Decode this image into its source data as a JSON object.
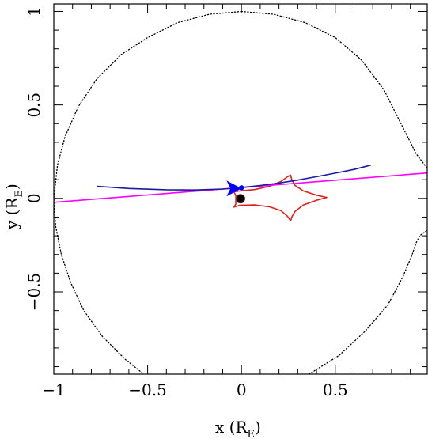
{
  "chart_data": {
    "type": "line",
    "title": "",
    "xlabel": {
      "main": "x (R",
      "sub": "E",
      "close": ")"
    },
    "ylabel": {
      "main": "y (R",
      "sub": "E",
      "close": ")"
    },
    "xlim": [
      -1.0,
      0.99
    ],
    "ylim": [
      -0.94,
      1.04
    ],
    "x_ticks": [
      {
        "value": -1,
        "label": "−1"
      },
      {
        "value": -0.5,
        "label": "−0.5"
      },
      {
        "value": 0,
        "label": "0"
      },
      {
        "value": 0.5,
        "label": "0.5"
      }
    ],
    "y_ticks": [
      {
        "value": -0.5,
        "label": "−0.5"
      },
      {
        "value": 0,
        "label": "0"
      },
      {
        "value": 0.5,
        "label": "0.5"
      },
      {
        "value": 1,
        "label": "1"
      }
    ],
    "grid": false,
    "series": [
      {
        "kind": "critical-curve",
        "style": "dotted",
        "color": "#000000",
        "points": [
          [
            0.0,
            1.0
          ],
          [
            0.17,
            0.985
          ],
          [
            0.34,
            0.94
          ],
          [
            0.5,
            0.86
          ],
          [
            0.64,
            0.74
          ],
          [
            0.76,
            0.58
          ],
          [
            0.85,
            0.4
          ],
          [
            0.9,
            0.3
          ],
          [
            0.93,
            0.24
          ],
          [
            0.96,
            0.2
          ],
          [
            0.99,
            0.16
          ]
        ]
      },
      {
        "kind": "critical-curve",
        "style": "dotted",
        "color": "#000000",
        "points": [
          [
            0.0,
            1.0
          ],
          [
            -0.17,
            0.985
          ],
          [
            -0.34,
            0.94
          ],
          [
            -0.5,
            0.86
          ],
          [
            -0.64,
            0.77
          ],
          [
            -0.77,
            0.64
          ],
          [
            -0.87,
            0.49
          ],
          [
            -0.94,
            0.33
          ],
          [
            -0.98,
            0.18
          ],
          [
            -1.0,
            0.0
          ],
          [
            -0.99,
            -0.15
          ],
          [
            -0.96,
            -0.3
          ],
          [
            -0.91,
            -0.45
          ],
          [
            -0.84,
            -0.6
          ],
          [
            -0.74,
            -0.74
          ],
          [
            -0.62,
            -0.86
          ],
          [
            -0.52,
            -0.94
          ]
        ]
      },
      {
        "kind": "critical-curve",
        "style": "dotted",
        "color": "#000000",
        "points": [
          [
            0.36,
            -0.94
          ],
          [
            0.52,
            -0.84
          ],
          [
            0.66,
            -0.71
          ],
          [
            0.78,
            -0.57
          ],
          [
            0.86,
            -0.42
          ],
          [
            0.91,
            -0.3
          ],
          [
            0.93,
            -0.24
          ],
          [
            0.95,
            -0.2
          ],
          [
            0.99,
            -0.17
          ]
        ]
      },
      {
        "kind": "caustic",
        "style": "solid",
        "color": "#e0201c",
        "points": [
          [
            -0.01,
            0.04
          ],
          [
            0.07,
            0.047
          ],
          [
            0.15,
            0.065
          ],
          [
            0.21,
            0.09
          ],
          [
            0.245,
            0.115
          ],
          [
            0.262,
            0.125
          ],
          [
            0.268,
            0.1
          ],
          [
            0.285,
            0.07
          ],
          [
            0.33,
            0.04
          ],
          [
            0.4,
            0.017
          ],
          [
            0.455,
            0.005
          ],
          [
            0.4,
            -0.01
          ],
          [
            0.33,
            -0.035
          ],
          [
            0.285,
            -0.07
          ],
          [
            0.268,
            -0.1
          ],
          [
            0.262,
            -0.12
          ],
          [
            0.245,
            -0.095
          ],
          [
            0.21,
            -0.065
          ],
          [
            0.15,
            -0.045
          ],
          [
            0.07,
            -0.035
          ],
          [
            -0.01,
            -0.037
          ],
          [
            -0.04,
            -0.047
          ],
          [
            -0.03,
            -0.03
          ],
          [
            -0.03,
            0.015
          ],
          [
            -0.04,
            0.035
          ],
          [
            -0.01,
            0.04
          ]
        ]
      },
      {
        "kind": "source-trajectory",
        "style": "solid",
        "color": "#ff00ff",
        "points": [
          [
            -1.0,
            -0.021
          ],
          [
            0.99,
            0.136
          ]
        ]
      },
      {
        "kind": "image-trajectory",
        "style": "solid",
        "color": "#1a1aa0",
        "points": [
          [
            -0.77,
            0.065
          ],
          [
            -0.6,
            0.053
          ],
          [
            -0.4,
            0.046
          ],
          [
            -0.25,
            0.045
          ],
          [
            -0.1,
            0.05
          ],
          [
            0.0,
            0.058
          ],
          [
            0.1,
            0.069
          ],
          [
            0.2,
            0.082
          ],
          [
            0.3,
            0.098
          ],
          [
            0.4,
            0.116
          ],
          [
            0.5,
            0.135
          ],
          [
            0.6,
            0.155
          ],
          [
            0.69,
            0.178
          ]
        ]
      }
    ],
    "markers": [
      {
        "kind": "lens-primary",
        "x": -0.005,
        "y": -0.002,
        "color": "#000000",
        "shape": "filled-circle"
      },
      {
        "kind": "image-position",
        "x": 0.0,
        "y": 0.057,
        "color": "#0000ff",
        "shape": "dot"
      },
      {
        "kind": "direction-arrow",
        "x": -0.05,
        "y": 0.053,
        "color": "#0000ff",
        "shape": "arrowhead"
      }
    ]
  }
}
